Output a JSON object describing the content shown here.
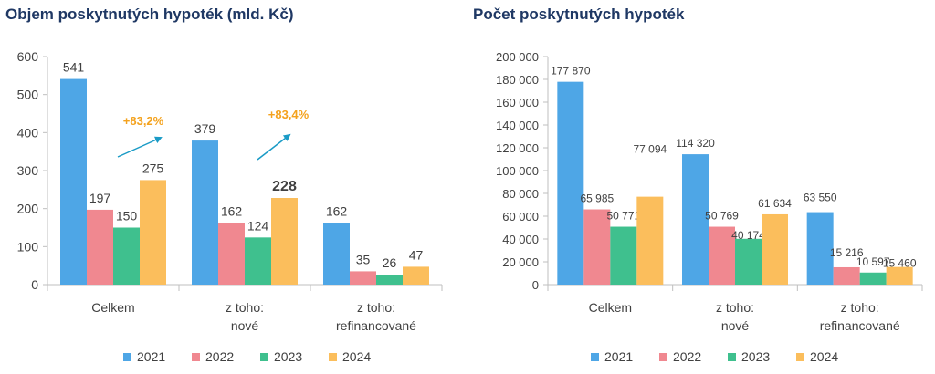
{
  "colors": {
    "2021": "#4ea6e6",
    "2022": "#f08890",
    "2023": "#3fc08e",
    "2024": "#fbbe5c",
    "arrow": "#1a9bc6",
    "annotation": "#f4a21d",
    "axis": "#bfbfbf",
    "text": "#404040",
    "title": "#1f3864"
  },
  "chart_data": [
    {
      "type": "bar",
      "title": "Objem poskytnutých hypoték (mld. Kč)",
      "categories": [
        [
          "Celkem"
        ],
        [
          "z toho:",
          "nové"
        ],
        [
          "z toho:",
          "refinancované"
        ]
      ],
      "ylim": [
        0,
        600
      ],
      "yticks": [
        "0",
        "100",
        "200",
        "300",
        "400",
        "500",
        "600"
      ],
      "series": [
        {
          "name": "2021",
          "values": [
            541,
            379,
            162
          ],
          "labels": [
            "541",
            "379",
            "162"
          ]
        },
        {
          "name": "2022",
          "values": [
            197,
            162,
            35
          ],
          "labels": [
            "197",
            "162",
            "35"
          ]
        },
        {
          "name": "2023",
          "values": [
            150,
            124,
            26
          ],
          "labels": [
            "150",
            "124",
            "26"
          ]
        },
        {
          "name": "2024",
          "values": [
            275,
            228,
            47
          ],
          "labels": [
            "275",
            "228",
            "47"
          ]
        }
      ],
      "annotations": [
        "+83,2%",
        "+83,4%"
      ],
      "legend": "bottom",
      "grid": false
    },
    {
      "type": "bar",
      "title": "Počet poskytnutých hypoték",
      "categories": [
        [
          "Celkem"
        ],
        [
          "z toho:",
          "nové"
        ],
        [
          "z toho:",
          "refinancované"
        ]
      ],
      "ylim": [
        0,
        200000
      ],
      "yticks": [
        "0",
        "20 000",
        "40 000",
        "60 000",
        "80 000",
        "100 000",
        "120 000",
        "140 000",
        "160 000",
        "180 000",
        "200 000"
      ],
      "series": [
        {
          "name": "2021",
          "values": [
            177870,
            114320,
            63550
          ],
          "labels": [
            "177 870",
            "114 320",
            "63 550"
          ]
        },
        {
          "name": "2022",
          "values": [
            65985,
            50769,
            15216
          ],
          "labels": [
            "65 985",
            "50 769",
            "15 216"
          ]
        },
        {
          "name": "2023",
          "values": [
            50771,
            40174,
            10597
          ],
          "labels": [
            "50 771",
            "40 174",
            "10 597"
          ]
        },
        {
          "name": "2024",
          "values": [
            77094,
            61634,
            15460
          ],
          "labels": [
            "77 094",
            "61 634",
            "15 460"
          ]
        }
      ],
      "legend": "bottom",
      "grid": false
    }
  ]
}
